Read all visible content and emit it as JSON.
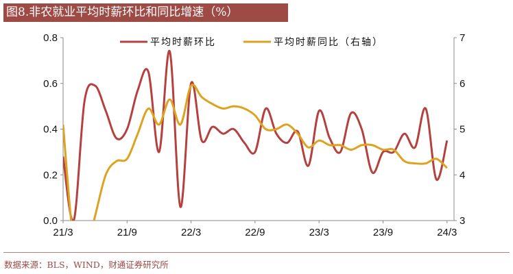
{
  "title": "图8.非农就业平均时薪环比和同比增速（%）",
  "source": "数据来源：BLS，WIND，财通证券研究所",
  "colors": {
    "title_bg": "#9e4a45",
    "mom": "#b5413f",
    "yoy": "#dea21f"
  },
  "chart_data": {
    "type": "line",
    "title": "图8.非农就业平均时薪环比和同比增速（%）",
    "x_tick_labels": [
      "21/3",
      "21/9",
      "22/3",
      "22/9",
      "23/3",
      "23/9",
      "24/3"
    ],
    "x": [
      "21/3",
      "21/4",
      "21/5",
      "21/6",
      "21/7",
      "21/8",
      "21/9",
      "21/10",
      "21/11",
      "21/12",
      "22/1",
      "22/2",
      "22/3",
      "22/4",
      "22/5",
      "22/6",
      "22/7",
      "22/8",
      "22/9",
      "22/10",
      "22/11",
      "22/12",
      "23/1",
      "23/2",
      "23/3",
      "23/4",
      "23/5",
      "23/6",
      "23/7",
      "23/8",
      "23/9",
      "23/10",
      "23/11",
      "23/12",
      "24/1",
      "24/2",
      "24/3"
    ],
    "y_left": {
      "ylim": [
        0,
        0.8
      ],
      "ticks": [
        "0.0",
        "0.2",
        "0.4",
        "0.6",
        "0.8"
      ]
    },
    "y_right": {
      "ylim": [
        3,
        7
      ],
      "ticks": [
        "3",
        "4",
        "5",
        "6",
        "7"
      ]
    },
    "legend_placement": "top",
    "grid": false,
    "series": [
      {
        "name": "平均时薪环比",
        "axis": "left",
        "color": "#b5413f",
        "values": [
          0.28,
          0.0,
          0.52,
          0.59,
          0.48,
          0.36,
          0.4,
          0.57,
          0.65,
          0.3,
          0.74,
          0.06,
          0.6,
          0.35,
          0.41,
          0.38,
          0.4,
          0.34,
          0.3,
          0.49,
          0.38,
          0.34,
          0.39,
          0.24,
          0.48,
          0.36,
          0.3,
          0.47,
          0.4,
          0.21,
          0.3,
          0.3,
          0.38,
          0.32,
          0.49,
          0.18,
          0.35
        ]
      },
      {
        "name": "平均时薪同比（右轴）",
        "axis": "right",
        "color": "#dea21f",
        "values": [
          5.1,
          2.5,
          2.2,
          3.1,
          4.0,
          4.3,
          4.35,
          4.9,
          5.45,
          5.1,
          5.65,
          5.1,
          5.95,
          5.7,
          5.55,
          5.45,
          5.5,
          5.45,
          5.3,
          5.0,
          5.0,
          5.1,
          4.9,
          4.6,
          4.75,
          4.65,
          4.65,
          4.55,
          4.65,
          4.65,
          4.55,
          4.55,
          4.3,
          4.25,
          4.25,
          4.35,
          4.15
        ]
      }
    ]
  }
}
